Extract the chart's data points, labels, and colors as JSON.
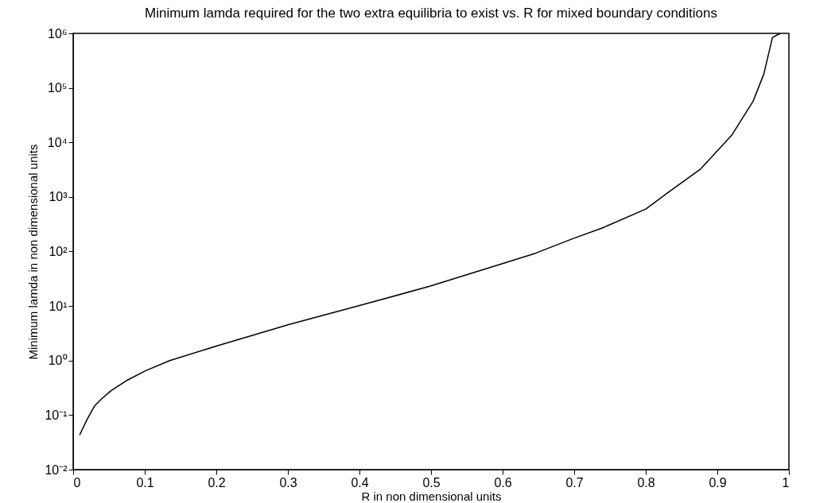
{
  "chart_data": {
    "type": "line",
    "title": "Minimum lamda required for the two extra equilibria to exist vs. R for mixed boundary conditions",
    "xlabel": "R in non dimensional units",
    "ylabel": "Minimum lamda in non dimensional units",
    "log": "y",
    "grid": false,
    "marker": "none",
    "line_style": "solid",
    "xlim": [
      0,
      1
    ],
    "xticks": [
      0,
      0.1,
      0.2,
      0.3,
      0.4,
      0.5,
      0.6,
      0.7,
      0.8,
      0.9,
      1
    ],
    "ylim": [
      0.01,
      1000000
    ],
    "yticks": [
      {
        "value": 0.01,
        "label": "10⁻²"
      },
      {
        "value": 0.1,
        "label": "10⁻¹"
      },
      {
        "value": 1,
        "label": "10⁰"
      },
      {
        "value": 10,
        "label": "10¹"
      },
      {
        "value": 100,
        "label": "10²"
      },
      {
        "value": 1000,
        "label": "10³"
      },
      {
        "value": 10000,
        "label": "10⁴"
      },
      {
        "value": 100000,
        "label": "10⁵"
      },
      {
        "value": 1000000,
        "label": "10⁶"
      }
    ],
    "series": [
      {
        "color": "#000000",
        "x": [
          0.009,
          0.019,
          0.03,
          0.04,
          0.053,
          0.076,
          0.101,
          0.135,
          0.201,
          0.302,
          0.4,
          0.498,
          0.598,
          0.646,
          0.698,
          0.739,
          0.8,
          0.831,
          0.876,
          0.92,
          0.95,
          0.965,
          0.977,
          0.988
        ],
        "values": [
          0.043,
          0.081,
          0.148,
          0.2,
          0.28,
          0.44,
          0.65,
          1.0,
          1.86,
          4.6,
          10.2,
          23,
          59,
          93,
          172,
          269,
          600,
          1200,
          3200,
          13500,
          57000,
          180000,
          840000,
          1000000
        ]
      }
    ]
  }
}
